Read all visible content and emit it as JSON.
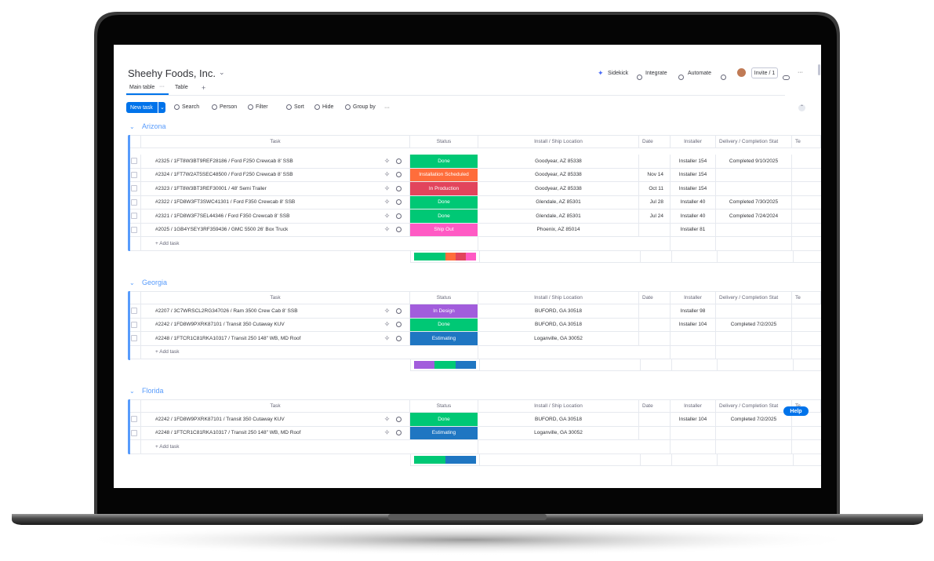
{
  "header": {
    "title": "Sheehy Foods, Inc.",
    "tabs": [
      "Main table",
      "Table"
    ],
    "add_tab": "+",
    "actions": [
      "Sidekick",
      "Integrate",
      "Automate"
    ],
    "invite": "Invite / 1"
  },
  "toolbar": {
    "new_task": "New task",
    "items": [
      "Search",
      "Person",
      "Filter",
      "Sort",
      "Hide",
      "Group by"
    ]
  },
  "columns": [
    "Task",
    "Status",
    "Install / Ship Location",
    "Date",
    "Installer",
    "Delivery / Completion Stat",
    "Te"
  ],
  "status_colors": {
    "Done": "#00c875",
    "Installation Scheduled": "#ff6d3b",
    "In Production": "#e2445c",
    "Ship Out": "#ff5ac4",
    "In Design": "#a25ddc",
    "Estimating": "#1f76c2"
  },
  "groups": [
    {
      "name": "Arizona",
      "color": "#579bfc",
      "add_task": "+ Add task",
      "rows": [
        {
          "task": "#2325 / 1FT8W3BT9REF28186 / Ford F250 Crewcab 8' SSB",
          "status": "Done",
          "location": "Goodyear, AZ 85338",
          "date": null,
          "installer": "Installer 154",
          "delivery": "Completed 9/10/2025"
        },
        {
          "task": "#2324 / 1FT7W2AT5SEC48500 / Ford F250 Crewcab 8' SSB",
          "status": "Installation Scheduled",
          "location": "Goodyear, AZ 85338",
          "date": "Nov 14",
          "installer": "Installer 154",
          "delivery": null
        },
        {
          "task": "#2323 / 1FT8W3BT3REF30001 / 48' Semi Trailer",
          "status": "In Production",
          "location": "Goodyear, AZ 85338",
          "date": "Oct 11",
          "installer": "Installer 154",
          "delivery": null
        },
        {
          "task": "#2322 / 1FD8W3FT3SWC41301 / Ford F350 Crewcab 8' SSB",
          "status": "Done",
          "location": "Glendale, AZ 85301",
          "date": "Jul 28",
          "installer": "Installer 40",
          "delivery": "Completed 7/30/2025"
        },
        {
          "task": "#2321 / 1FD8W3F7SEL44346 / Ford F350 Crewcab 8' SSB",
          "status": "Done",
          "location": "Glendale, AZ 85301",
          "date": "Jul 24",
          "installer": "Installer 40",
          "delivery": "Completed 7/24/2024"
        },
        {
          "task": "#2025 / 1GB4YSEY3RF359436 / GMC 5500 26' Box Truck",
          "status": "Ship Out",
          "location": "Phoenix, AZ 85014",
          "date": null,
          "installer": "Installer 81",
          "delivery": null
        }
      ]
    },
    {
      "name": "Georgia",
      "color": "#579bfc",
      "add_task": "+ Add task",
      "rows": [
        {
          "task": "#2207 / 3C7WRSCL2RG347026 / Ram 3500 Crew Cab 8' SSB",
          "status": "In Design",
          "location": "BUFORD, GA 30518",
          "date": null,
          "installer": "Installer 98",
          "delivery": null
        },
        {
          "task": "#2242 / 1FD8W9PXRK87101 / Transit 350 Cutaway KUV",
          "status": "Done",
          "location": "BUFORD, GA 30518",
          "date": null,
          "installer": "Installer 104",
          "delivery": "Completed 7/2/2025"
        },
        {
          "task": "#2248 / 1FTCR1C81RKA10317 / Transit 250 148\" WB, MD Roof",
          "status": "Estimating",
          "location": "Loganville, GA 30052",
          "date": null,
          "installer": null,
          "delivery": null
        }
      ]
    },
    {
      "name": "Florida",
      "color": "#579bfc",
      "add_task": "+ Add task",
      "rows": [
        {
          "task": "#2242 / 1FD8W9PXRK87101 / Transit 350 Cutaway KUV",
          "status": "Done",
          "location": "BUFORD, GA 30518",
          "date": null,
          "installer": "Installer 104",
          "delivery": "Completed 7/2/2025"
        },
        {
          "task": "#2248 / 1FTCR1C81RKA10317 / Transit 250 148\" WB, MD Roof",
          "status": "Estimating",
          "location": "Loganville, GA 30052",
          "date": null,
          "installer": null,
          "delivery": null
        }
      ]
    }
  ],
  "help": "Help"
}
